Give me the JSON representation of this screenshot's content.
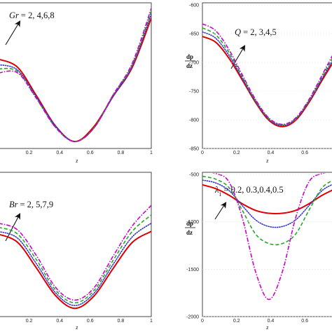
{
  "chart_data": [
    {
      "type": "line",
      "xlabel": "z",
      "ylabel": "",
      "xlim": [
        0,
        1
      ],
      "x_ticks": [
        "0.2",
        "0.4",
        "0.6",
        "0.8",
        "1"
      ],
      "y_ticks": [],
      "annotation": {
        "var": "Gr",
        "values": "= 2, 4,6,8"
      },
      "series": [
        {
          "color": "#dd0000",
          "style": "solid",
          "values": [
            0.62,
            0.56,
            0.35,
            0.13,
            0.02,
            0.13,
            0.35,
            0.56,
            0.92
          ]
        },
        {
          "color": "#3333cc",
          "style": "dotted",
          "values": [
            0.58,
            0.54,
            0.34,
            0.13,
            0.02,
            0.12,
            0.35,
            0.57,
            0.95
          ]
        },
        {
          "color": "#22aa22",
          "style": "dashed",
          "values": [
            0.55,
            0.53,
            0.33,
            0.12,
            0.02,
            0.12,
            0.36,
            0.58,
            0.97
          ]
        },
        {
          "color": "#cc00cc",
          "style": "dashdot",
          "values": [
            0.52,
            0.52,
            0.33,
            0.12,
            0.02,
            0.12,
            0.36,
            0.59,
            0.99
          ]
        }
      ]
    },
    {
      "type": "line",
      "xlabel": "z",
      "ylabel": "dp/dz",
      "xlim": [
        0,
        0.78
      ],
      "ylim": [
        -850,
        -600
      ],
      "x_ticks": [
        "0",
        "0.2",
        "0.4",
        "0.6"
      ],
      "y_ticks": [
        "-600",
        "-650",
        "-700",
        "-750",
        "-800",
        "-850"
      ],
      "annotation": {
        "var": "Q",
        "values": "= 2, 3,4,5"
      },
      "series": [
        {
          "color": "#dd0000",
          "style": "solid",
          "values": [
            -655,
            -665,
            -693,
            -731,
            -770,
            -801,
            -812,
            -801,
            -770,
            -731,
            -693
          ]
        },
        {
          "color": "#3333cc",
          "style": "dotted",
          "values": [
            -647,
            -658,
            -688,
            -728,
            -768,
            -799,
            -810,
            -799,
            -768,
            -728,
            -688
          ]
        },
        {
          "color": "#22aa22",
          "style": "dashed",
          "values": [
            -640,
            -652,
            -683,
            -725,
            -767,
            -798,
            -809,
            -798,
            -767,
            -725,
            -683
          ]
        },
        {
          "color": "#cc00cc",
          "style": "dashdot",
          "values": [
            -633,
            -645,
            -678,
            -722,
            -765,
            -797,
            -808,
            -797,
            -765,
            -722,
            -678
          ]
        }
      ]
    },
    {
      "type": "line",
      "xlabel": "z",
      "ylabel": "",
      "xlim": [
        0,
        1
      ],
      "x_ticks": [
        "0.2",
        "0.4",
        "0.6",
        "0.8",
        "1"
      ],
      "y_ticks": [],
      "annotation": {
        "var": "Br",
        "values": "= 2, 5,7,9"
      },
      "series": [
        {
          "color": "#dd0000",
          "style": "solid",
          "values": [
            0.58,
            0.52,
            0.33,
            0.13,
            0.04,
            0.13,
            0.33,
            0.52,
            0.6
          ]
        },
        {
          "color": "#3333cc",
          "style": "dotted",
          "values": [
            0.6,
            0.55,
            0.36,
            0.15,
            0.06,
            0.15,
            0.36,
            0.56,
            0.66
          ]
        },
        {
          "color": "#22aa22",
          "style": "dashed",
          "values": [
            0.63,
            0.58,
            0.39,
            0.17,
            0.08,
            0.17,
            0.39,
            0.6,
            0.72
          ]
        },
        {
          "color": "#cc00cc",
          "style": "dashdot",
          "values": [
            0.66,
            0.61,
            0.42,
            0.19,
            0.1,
            0.19,
            0.42,
            0.64,
            0.79
          ]
        }
      ]
    },
    {
      "type": "line",
      "xlabel": "z",
      "ylabel": "dp/dz",
      "xlim": [
        0,
        0.78
      ],
      "ylim": [
        -2000,
        -500
      ],
      "x_ticks": [
        "0",
        "0.2",
        "0.4",
        "0.6"
      ],
      "y_ticks": [
        "-500",
        "-1000",
        "-1500",
        "-2000"
      ],
      "annotation": {
        "var": "λ",
        "sub": "1",
        "values": "= 0.2, 0.3,0.4,0.5"
      },
      "series": [
        {
          "color": "#dd0000",
          "style": "solid",
          "values": [
            -610,
            -650,
            -720,
            -810,
            -880,
            -910,
            -910,
            -880,
            -810,
            -720,
            -650
          ]
        },
        {
          "color": "#3333cc",
          "style": "dotted",
          "values": [
            -560,
            -590,
            -670,
            -830,
            -980,
            -1050,
            -1050,
            -980,
            -830,
            -670,
            -590
          ]
        },
        {
          "color": "#22aa22",
          "style": "dashed",
          "values": [
            -520,
            -550,
            -640,
            -880,
            -1130,
            -1230,
            -1230,
            -1130,
            -880,
            -640,
            -550
          ]
        },
        {
          "color": "#cc00cc",
          "style": "dashdot",
          "values": [
            -470,
            -490,
            -580,
            -960,
            -1530,
            -1820,
            -1530,
            -960,
            -580,
            -490,
            -470
          ]
        }
      ]
    }
  ]
}
